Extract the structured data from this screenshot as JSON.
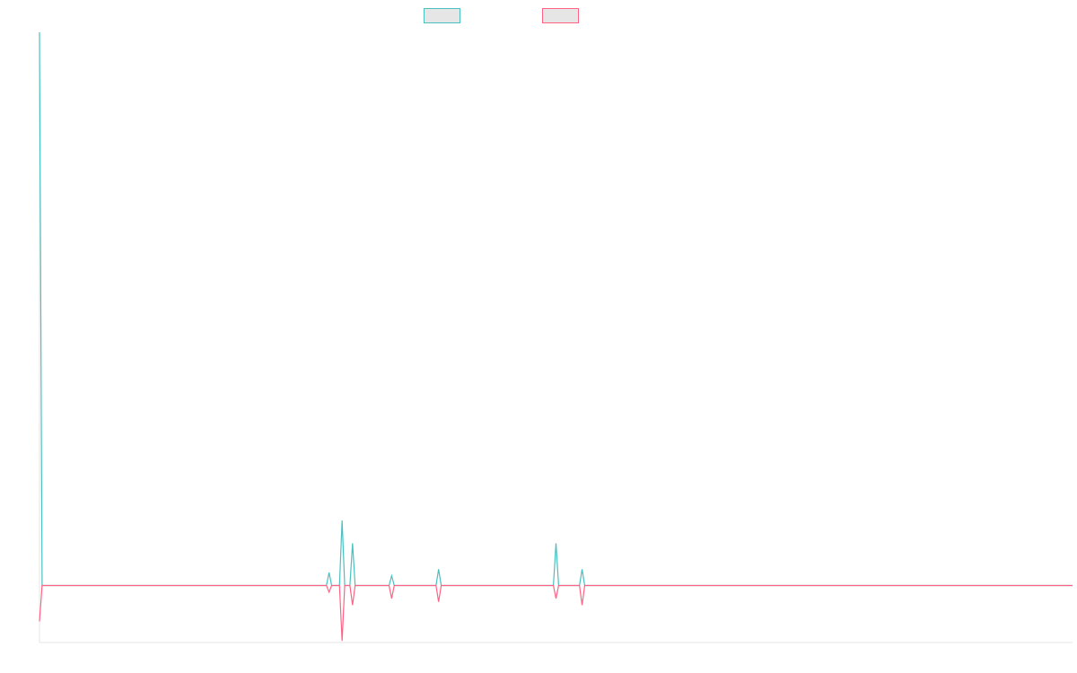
{
  "chart_data": {
    "type": "line",
    "title": "",
    "xlabel": "",
    "ylabel": "",
    "grid": false,
    "legend_placement": "top-center",
    "x": [
      0,
      1,
      2,
      3,
      4,
      5,
      6,
      7,
      8,
      9,
      10,
      11,
      12,
      13,
      14,
      15,
      16,
      17,
      18,
      19,
      20,
      21,
      22,
      23,
      24,
      25,
      26,
      27,
      28,
      29,
      30,
      31,
      32,
      33,
      34,
      35,
      36,
      37,
      38,
      39,
      40,
      41,
      42,
      43,
      44,
      45,
      46,
      47,
      48,
      49,
      50,
      51,
      52,
      53,
      54,
      55,
      56,
      57,
      58,
      59,
      60,
      61,
      62,
      63,
      64,
      65,
      66,
      67,
      68,
      69,
      70,
      71,
      72,
      73,
      74,
      75,
      76,
      77,
      78,
      79,
      80,
      81,
      82,
      83,
      84,
      85,
      86,
      87,
      88,
      89,
      90,
      91,
      92,
      93,
      94,
      95,
      96,
      97,
      98,
      99,
      100,
      101,
      102,
      103,
      104,
      105,
      106,
      107,
      108,
      109,
      110,
      111,
      112,
      113,
      114,
      115,
      116,
      117,
      118,
      119,
      120,
      121,
      122,
      123,
      124,
      125,
      126,
      127,
      128,
      129,
      130,
      131,
      132,
      133,
      134,
      135,
      136,
      137,
      138,
      139,
      140,
      141,
      142,
      143,
      144,
      145,
      146,
      147,
      148,
      149,
      150,
      151,
      152,
      153,
      154,
      155,
      156,
      157,
      158,
      159,
      160,
      161,
      162,
      163,
      164,
      165,
      166,
      167,
      168,
      169,
      170,
      171,
      172,
      173,
      174,
      175,
      176,
      177,
      178,
      179,
      180,
      181,
      182,
      183,
      184,
      185,
      186,
      187,
      188,
      189,
      190,
      191,
      192,
      193,
      194,
      195,
      196,
      197,
      198,
      199,
      200,
      201,
      202,
      203,
      204,
      205,
      206,
      207,
      208,
      209,
      210,
      211,
      212,
      213,
      214,
      215,
      216,
      217,
      218,
      219,
      220,
      221,
      222,
      223,
      224,
      225,
      226,
      227,
      228,
      229,
      230,
      231,
      232,
      233,
      234,
      235,
      236,
      237,
      238,
      239,
      240,
      241,
      242,
      243,
      244,
      245,
      246,
      247,
      248,
      249,
      250,
      251,
      252,
      253,
      254,
      255,
      256,
      257,
      258,
      259,
      260,
      261,
      262,
      263,
      264,
      265,
      266,
      267,
      268,
      269,
      270,
      271,
      272,
      273,
      274,
      275,
      276,
      277,
      278,
      279,
      280,
      281,
      282,
      283,
      284,
      285,
      286,
      287,
      288,
      289,
      290,
      291,
      292,
      293,
      294,
      295,
      296,
      297,
      298,
      299,
      300,
      301,
      302,
      303,
      304,
      305,
      306,
      307,
      308,
      309,
      310,
      311,
      312,
      313,
      314,
      315,
      316,
      317,
      318,
      319,
      320,
      321,
      322,
      323,
      324,
      325,
      326,
      327,
      328,
      329,
      330,
      331,
      332,
      333,
      334,
      335,
      336,
      337,
      338,
      339,
      340,
      341,
      342,
      343,
      344,
      345,
      346,
      347,
      348,
      349,
      350,
      351,
      352,
      353,
      354,
      355,
      356,
      357,
      358,
      359,
      360,
      361,
      362,
      363,
      364,
      365,
      366,
      367,
      368,
      369,
      370,
      371,
      372,
      373,
      374,
      375,
      376,
      377,
      378,
      379,
      380,
      381,
      382,
      383,
      384,
      385,
      386,
      387,
      388,
      389,
      390,
      391,
      392,
      393,
      394,
      395,
      396
    ],
    "series": [
      {
        "color": "#4bc0c0",
        "spikes": [
          [
            0,
            170
          ],
          [
            111,
            4
          ],
          [
            116,
            20
          ],
          [
            120,
            13
          ],
          [
            135,
            3
          ],
          [
            153,
            5
          ],
          [
            198,
            13
          ],
          [
            208,
            5
          ]
        ]
      },
      {
        "color": "#ff6384",
        "spikes": [
          [
            0,
            -11
          ],
          [
            111,
            -2
          ],
          [
            116,
            -17
          ],
          [
            120,
            -6
          ],
          [
            135,
            -4
          ],
          [
            153,
            -5
          ],
          [
            198,
            -4
          ],
          [
            208,
            -6
          ]
        ]
      }
    ],
    "ylim": [
      -17.5,
      170
    ]
  }
}
